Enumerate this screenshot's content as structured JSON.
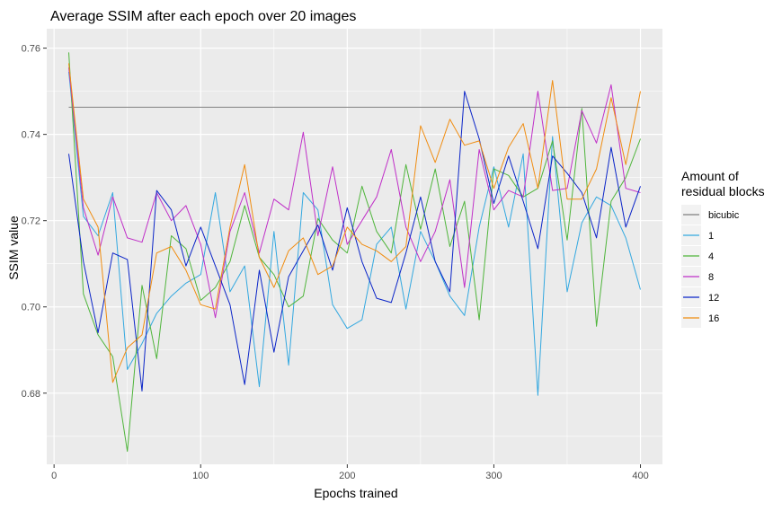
{
  "chart_data": {
    "type": "line",
    "title": "Average SSIM after each epoch over 20 images",
    "xlabel": "Epochs trained",
    "ylabel": "SSIM value",
    "xlim": [
      -5,
      415
    ],
    "ylim": [
      0.6635,
      0.7645
    ],
    "xticks": [
      0,
      100,
      200,
      300,
      400
    ],
    "yticks": [
      0.68,
      0.7,
      0.72,
      0.74,
      0.76
    ],
    "xtick_labels": [
      "0",
      "100",
      "200",
      "300",
      "400"
    ],
    "ytick_labels": [
      "0.68",
      "0.70",
      "0.72",
      "0.74",
      "0.76"
    ],
    "grid": true,
    "legend": {
      "title_line1": "Amount of",
      "title_line2": "residual blocks",
      "position": "right"
    },
    "x": [
      10,
      20,
      30,
      40,
      50,
      60,
      70,
      80,
      90,
      100,
      110,
      120,
      130,
      140,
      150,
      160,
      170,
      180,
      190,
      200,
      210,
      220,
      230,
      240,
      250,
      260,
      270,
      280,
      290,
      300,
      310,
      320,
      330,
      340,
      350,
      360,
      370,
      380,
      390,
      400
    ],
    "series": [
      {
        "name": "bicubic",
        "color": "#808080",
        "values": [
          0.7463,
          0.7463,
          0.7463,
          0.7463,
          0.7463,
          0.7463,
          0.7463,
          0.7463,
          0.7463,
          0.7463,
          0.7463,
          0.7463,
          0.7463,
          0.7463,
          0.7463,
          0.7463,
          0.7463,
          0.7463,
          0.7463,
          0.7463,
          0.7463,
          0.7463,
          0.7463,
          0.7463,
          0.7463,
          0.7463,
          0.7463,
          0.7463,
          0.7463,
          0.7463,
          0.7463,
          0.7463,
          0.7463,
          0.7463,
          0.7463,
          0.7463,
          0.7463,
          0.7463,
          0.7463,
          0.7463
        ]
      },
      {
        "name": "1",
        "color": "#33a8e0",
        "values": [
          0.7545,
          0.721,
          0.7165,
          0.7265,
          0.6855,
          0.6915,
          0.6985,
          0.7025,
          0.7055,
          0.7075,
          0.7265,
          0.7035,
          0.7095,
          0.6815,
          0.7175,
          0.6865,
          0.7265,
          0.7225,
          0.7005,
          0.695,
          0.697,
          0.7145,
          0.7185,
          0.6995,
          0.7175,
          0.7105,
          0.7025,
          0.698,
          0.7185,
          0.7325,
          0.7185,
          0.7355,
          0.6795,
          0.7395,
          0.7035,
          0.7195,
          0.7255,
          0.7235,
          0.716,
          0.704
        ]
      },
      {
        "name": "4",
        "color": "#4fb53b",
        "values": [
          0.759,
          0.703,
          0.6935,
          0.6885,
          0.6665,
          0.705,
          0.688,
          0.7165,
          0.7135,
          0.7015,
          0.7045,
          0.7105,
          0.7235,
          0.7115,
          0.7075,
          0.7,
          0.7025,
          0.7205,
          0.7155,
          0.7125,
          0.728,
          0.7175,
          0.7125,
          0.733,
          0.718,
          0.732,
          0.714,
          0.7245,
          0.697,
          0.732,
          0.7305,
          0.7255,
          0.7275,
          0.7385,
          0.7155,
          0.746,
          0.6955,
          0.7245,
          0.73,
          0.739
        ]
      },
      {
        "name": "8",
        "color": "#c02fc8",
        "values": [
          0.7555,
          0.723,
          0.712,
          0.7255,
          0.716,
          0.715,
          0.7265,
          0.72,
          0.7235,
          0.7145,
          0.6975,
          0.7175,
          0.7265,
          0.7125,
          0.725,
          0.7225,
          0.7405,
          0.7165,
          0.7325,
          0.7145,
          0.72,
          0.7255,
          0.7365,
          0.7185,
          0.7105,
          0.7175,
          0.7295,
          0.7045,
          0.7365,
          0.7225,
          0.727,
          0.7255,
          0.75,
          0.727,
          0.7275,
          0.7455,
          0.738,
          0.7515,
          0.7275,
          0.7265
        ]
      },
      {
        "name": "12",
        "color": "#0a24c8",
        "values": [
          0.7355,
          0.7105,
          0.694,
          0.7125,
          0.711,
          0.6805,
          0.727,
          0.7225,
          0.7095,
          0.7185,
          0.7095,
          0.7005,
          0.682,
          0.7085,
          0.6895,
          0.707,
          0.713,
          0.719,
          0.7085,
          0.723,
          0.7105,
          0.702,
          0.701,
          0.7125,
          0.7255,
          0.7105,
          0.7035,
          0.75,
          0.739,
          0.724,
          0.735,
          0.7245,
          0.7135,
          0.735,
          0.731,
          0.7265,
          0.716,
          0.737,
          0.7185,
          0.728
        ]
      },
      {
        "name": "16",
        "color": "#f08c10",
        "values": [
          0.7565,
          0.725,
          0.7185,
          0.6825,
          0.6905,
          0.6935,
          0.7125,
          0.714,
          0.7085,
          0.7005,
          0.6995,
          0.7185,
          0.733,
          0.7115,
          0.7045,
          0.713,
          0.716,
          0.7075,
          0.7095,
          0.7185,
          0.7145,
          0.713,
          0.7105,
          0.714,
          0.742,
          0.7335,
          0.7435,
          0.7375,
          0.7385,
          0.7275,
          0.737,
          0.7425,
          0.7275,
          0.7525,
          0.725,
          0.725,
          0.732,
          0.7485,
          0.733,
          0.75
        ]
      }
    ]
  }
}
